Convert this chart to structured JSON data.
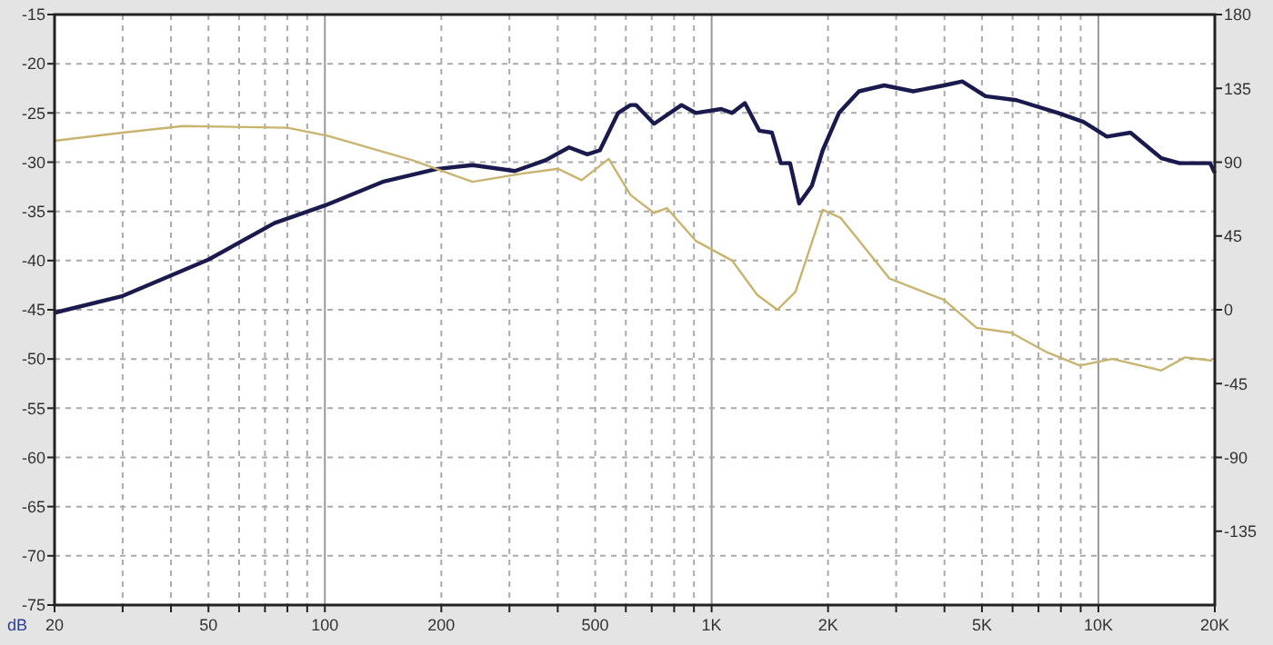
{
  "chart_data": {
    "type": "line",
    "ylabel": "dB",
    "log": "x",
    "grid": true,
    "xlim": [
      20,
      20000
    ],
    "xticks": [
      20,
      {
        "value": 30,
        "label": null
      },
      {
        "value": 40,
        "label": null
      },
      50,
      {
        "value": 60,
        "label": null
      },
      {
        "value": 70,
        "label": null
      },
      {
        "value": 80,
        "label": null
      },
      {
        "value": 90,
        "label": null
      },
      100,
      200,
      {
        "value": 300,
        "label": null
      },
      {
        "value": 400,
        "label": null
      },
      500,
      {
        "value": 600,
        "label": null
      },
      {
        "value": 700,
        "label": null
      },
      {
        "value": 800,
        "label": null
      },
      {
        "value": 900,
        "label": null
      },
      {
        "value": 1000,
        "label": "1K"
      },
      {
        "value": 2000,
        "label": "2K"
      },
      {
        "value": 3000,
        "label": null
      },
      {
        "value": 4000,
        "label": null
      },
      {
        "value": 5000,
        "label": "5K"
      },
      {
        "value": 6000,
        "label": null
      },
      {
        "value": 7000,
        "label": null
      },
      {
        "value": 8000,
        "label": null
      },
      {
        "value": 9000,
        "label": null
      },
      {
        "value": 10000,
        "label": "10K"
      },
      {
        "value": 20000,
        "label": "20K"
      }
    ],
    "ylim": [
      -75,
      -15
    ],
    "yticks": [
      -15,
      -20,
      -25,
      -30,
      -35,
      -40,
      -45,
      -50,
      -55,
      -60,
      -65,
      -70,
      -75
    ],
    "y2lim": [
      -180,
      180
    ],
    "y2ticks": [
      180,
      135,
      90,
      45,
      0,
      -45,
      -90,
      -135
    ],
    "series": [
      {
        "color": "#1a1a4e",
        "x": [
          20,
          30,
          50,
          74,
          100,
          141,
          194,
          241,
          310,
          372,
          428,
          477,
          514,
          573,
          617,
          638,
          710,
          836,
          910,
          1059,
          1130,
          1219,
          1328,
          1432,
          1510,
          1595,
          1684,
          1816,
          1937,
          2134,
          2405,
          2794,
          3321,
          3990,
          4446,
          5107,
          6138,
          7870,
          9146,
          10520,
          12105,
          14550,
          16220,
          19450,
          20000
        ],
        "values": [
          -45.3,
          -43.6,
          -39.9,
          -36.2,
          -34.4,
          -32.0,
          -30.7,
          -30.3,
          -30.9,
          -29.8,
          -28.5,
          -29.2,
          -28.8,
          -25.0,
          -24.2,
          -24.2,
          -26.1,
          -24.2,
          -25.0,
          -24.6,
          -25.0,
          -24.0,
          -26.8,
          -27.0,
          -30.1,
          -30.1,
          -34.2,
          -32.4,
          -28.8,
          -25.0,
          -22.8,
          -22.2,
          -22.8,
          -22.2,
          -21.8,
          -23.3,
          -23.7,
          -25.0,
          -25.9,
          -27.4,
          -27.0,
          -29.6,
          -30.1,
          -30.1,
          -31.1
        ]
      },
      {
        "color": "#c8b46e",
        "axis": "y2",
        "x": [
          20,
          30,
          43,
          80,
          102,
          169,
          241,
          323,
          401,
          461,
          542,
          617,
          710,
          766,
          910,
          1130,
          1313,
          1479,
          1648,
          1937,
          2157,
          2885,
          3990,
          4843,
          5946,
          7378,
          8954,
          10865,
          14550,
          16750,
          19680
        ],
        "values": [
          103,
          108,
          112,
          111,
          106,
          91,
          78,
          83,
          86,
          79,
          92,
          70,
          59,
          62,
          42,
          30,
          9,
          0,
          11,
          61,
          56,
          19,
          6,
          -11,
          -14,
          -26,
          -34,
          -30,
          -37,
          -29,
          -31
        ]
      }
    ]
  }
}
